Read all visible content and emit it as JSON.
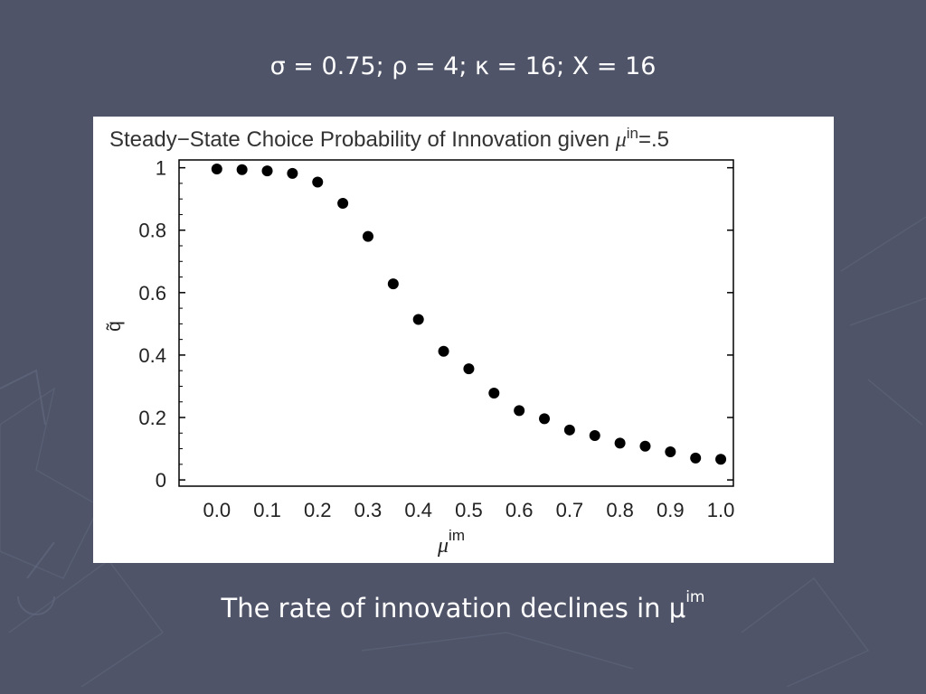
{
  "slide": {
    "heading": "σ = 0.75; ρ = 4; κ = 16; X = 16",
    "caption_main": "The rate of innovation declines in μ",
    "caption_sup": "im"
  },
  "colors": {
    "background": "#4f5468",
    "panel": "#ffffff",
    "points": "#000000",
    "text": "#ffffff"
  },
  "chart_data": {
    "type": "scatter",
    "title_main": "Steady−State Choice Probability of Innovation given ",
    "title_mu": "μ",
    "title_sup": "in",
    "title_end": "=.5",
    "xlabel_mu": "μ",
    "xlabel_sup": "im",
    "ylabel": "q̃",
    "xlim": [
      -0.075,
      1.025
    ],
    "ylim": [
      -0.02,
      1.025
    ],
    "x_ticks": [
      "0.0",
      "0.1",
      "0.2",
      "0.3",
      "0.4",
      "0.5",
      "0.6",
      "0.7",
      "0.8",
      "0.9",
      "1.0"
    ],
    "y_ticks": [
      "0",
      "0.2",
      "0.4",
      "0.6",
      "0.8",
      "1"
    ],
    "x": [
      0.0,
      0.05,
      0.1,
      0.15,
      0.2,
      0.25,
      0.3,
      0.35,
      0.4,
      0.45,
      0.5,
      0.55,
      0.6,
      0.65,
      0.7,
      0.75,
      0.8,
      0.85,
      0.9,
      0.95,
      1.0
    ],
    "y": [
      0.996,
      0.994,
      0.99,
      0.982,
      0.954,
      0.886,
      0.78,
      0.628,
      0.514,
      0.412,
      0.356,
      0.278,
      0.222,
      0.196,
      0.16,
      0.142,
      0.118,
      0.108,
      0.09,
      0.07,
      0.066
    ],
    "grid": false,
    "legend": "none"
  }
}
